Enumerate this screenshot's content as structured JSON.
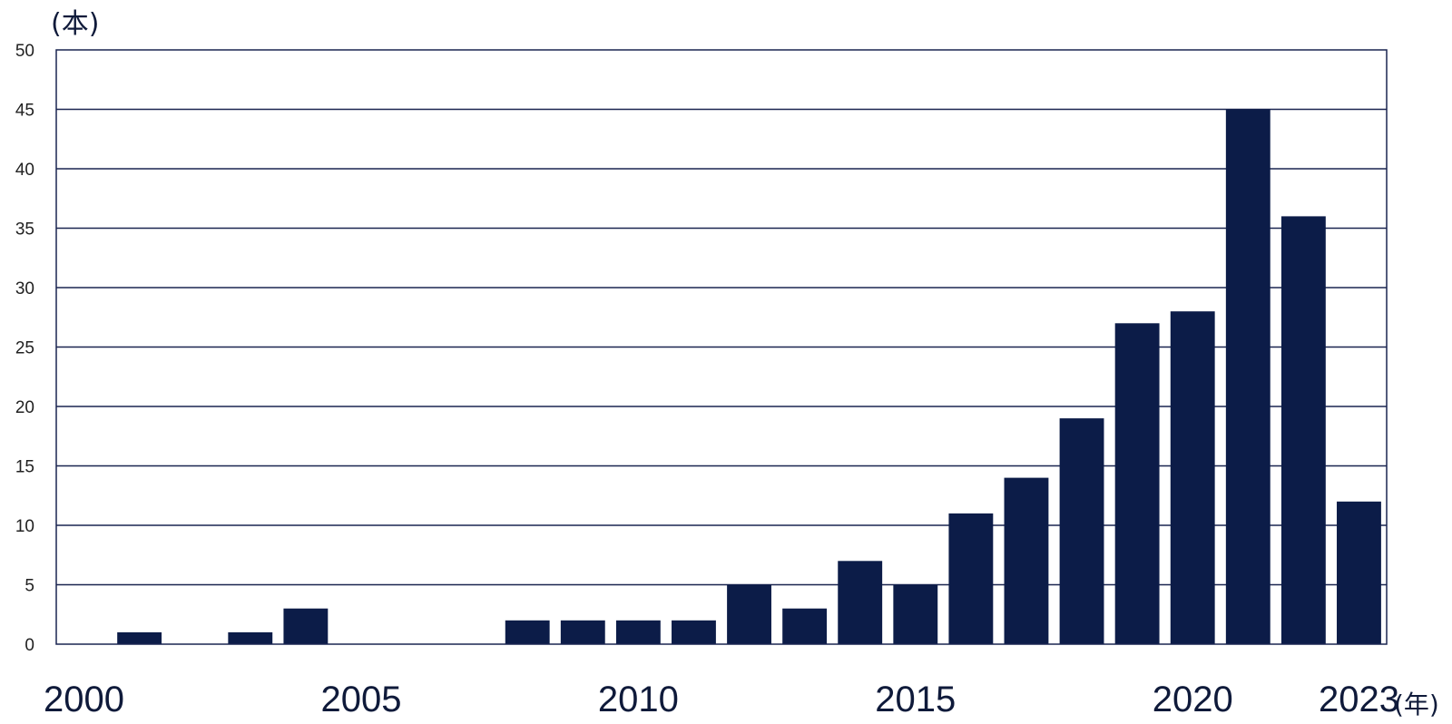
{
  "chart_data": {
    "type": "bar",
    "categories": [
      "2000",
      "2001",
      "2002",
      "2003",
      "2004",
      "2005",
      "2006",
      "2007",
      "2008",
      "2009",
      "2010",
      "2011",
      "2012",
      "2013",
      "2014",
      "2015",
      "2016",
      "2017",
      "2018",
      "2019",
      "2020",
      "2021",
      "2022",
      "2023"
    ],
    "values": [
      0,
      1,
      0,
      1,
      3,
      0,
      0,
      0,
      2,
      2,
      2,
      2,
      5,
      3,
      7,
      5,
      11,
      14,
      19,
      27,
      28,
      45,
      36,
      12
    ],
    "x_tick_labels": [
      "2000",
      "2005",
      "2010",
      "2015",
      "2020",
      "2023"
    ],
    "y_ticks": [
      0,
      5,
      10,
      15,
      20,
      25,
      30,
      35,
      40,
      45,
      50
    ],
    "ylim": [
      0,
      50
    ],
    "y_unit": "(本)",
    "x_unit": "(年)",
    "grid": true,
    "colors": {
      "bar": "#0c1c48",
      "grid": "#1a2550",
      "frame": "#1a2550"
    }
  }
}
